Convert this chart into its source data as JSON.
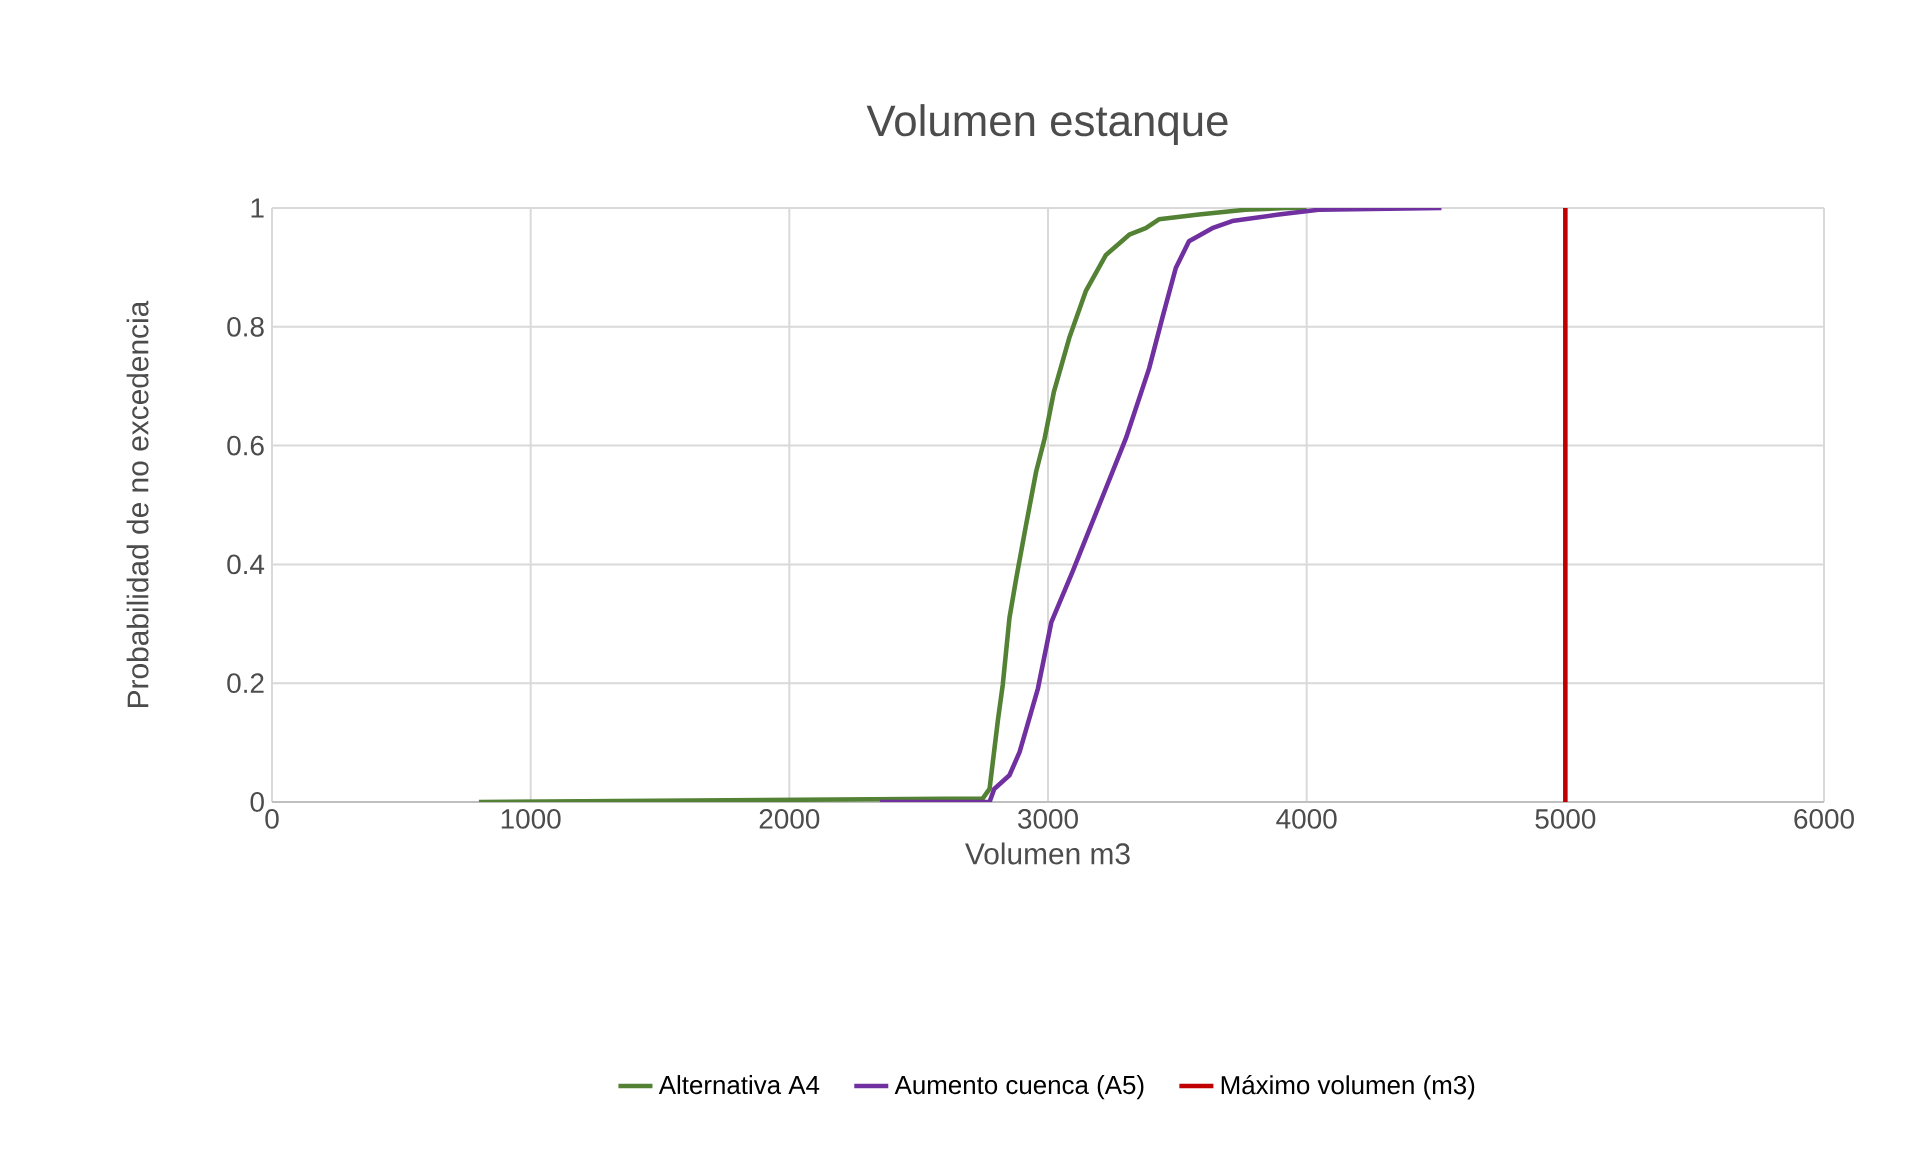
{
  "chart_data": {
    "type": "line",
    "title": "Volumen estanque",
    "xlabel": "Volumen  m3",
    "ylabel": "Probabilidad de no excedencia",
    "xlim": [
      0,
      6000
    ],
    "ylim": [
      0,
      1
    ],
    "xticks": [
      0,
      1000,
      2000,
      3000,
      4000,
      5000,
      6000
    ],
    "yticks": [
      0,
      0.2,
      0.4,
      0.6,
      0.8,
      1
    ],
    "grid": true,
    "legend": "bottom",
    "marker": "none",
    "line_style": "solid",
    "series": [
      {
        "name": "Alternativa A4",
        "color": "#548235",
        "x": [
          800,
          2748,
          2774,
          2807,
          2825,
          2851,
          2877,
          2915,
          2954,
          2987,
          3023,
          3082,
          3146,
          3224,
          3314,
          3378,
          3429,
          3583,
          3763,
          3918,
          4000
        ],
        "values": [
          0,
          0.006,
          0.022,
          0.14,
          0.197,
          0.31,
          0.376,
          0.466,
          0.556,
          0.612,
          0.691,
          0.781,
          0.86,
          0.921,
          0.955,
          0.966,
          0.981,
          0.989,
          0.997,
          1,
          1
        ]
      },
      {
        "name": "Aumento cuenca (A5)",
        "color": "#7030a0",
        "x": [
          2350,
          2774,
          2792,
          2851,
          2890,
          2920,
          2961,
          3013,
          3095,
          3198,
          3301,
          3391,
          3442,
          3494,
          3545,
          3635,
          3712,
          3892,
          4046,
          4521
        ],
        "values": [
          0,
          0,
          0.022,
          0.045,
          0.084,
          0.129,
          0.191,
          0.303,
          0.388,
          0.5,
          0.612,
          0.73,
          0.815,
          0.899,
          0.944,
          0.966,
          0.978,
          0.989,
          0.997,
          1
        ]
      },
      {
        "name": "Máximo volumen (m3)",
        "color": "#c00000",
        "x": [
          5000,
          5000
        ],
        "values": [
          0,
          1
        ]
      }
    ]
  }
}
